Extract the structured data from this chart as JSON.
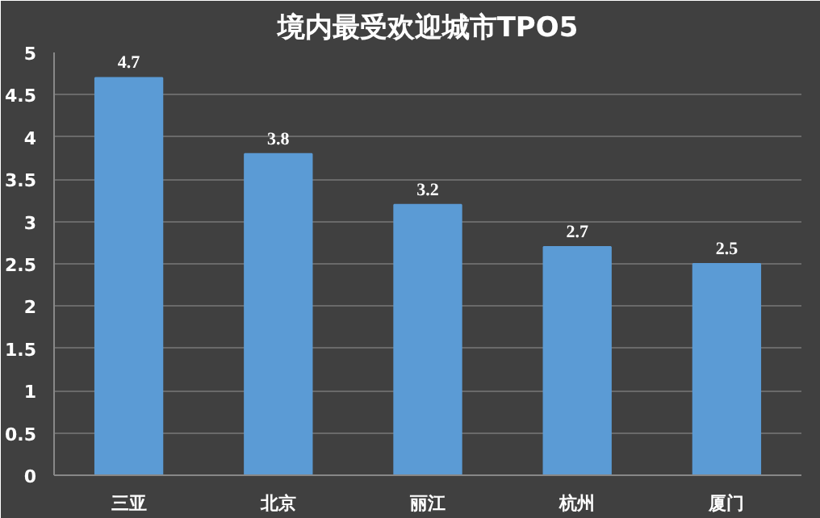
{
  "chart_data": {
    "type": "bar",
    "title": "境内最受欢迎城市TPO5",
    "categories": [
      "三亚",
      "北京",
      "丽江",
      "杭州",
      "厦门"
    ],
    "values": [
      4.7,
      3.8,
      3.2,
      2.7,
      2.5
    ],
    "color": "#5b9bd5",
    "ylim": [
      0,
      5
    ],
    "yticks": [
      0,
      0.5,
      1,
      1.5,
      2,
      2.5,
      3,
      3.5,
      4,
      4.5,
      5
    ],
    "grid": "y",
    "data_labels": true
  }
}
